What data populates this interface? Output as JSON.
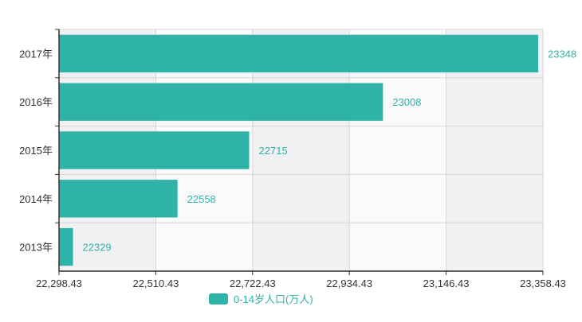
{
  "chart_data": {
    "type": "bar",
    "orientation": "horizontal",
    "categories": [
      "2013年",
      "2014年",
      "2015年",
      "2016年",
      "2017年"
    ],
    "series": [
      {
        "name": "0-14岁人口(万人)",
        "values": [
          22329,
          22558,
          22715,
          23008,
          23348
        ]
      }
    ],
    "data_labels": [
      "22329",
      "22558",
      "22715",
      "23008",
      "23348"
    ],
    "x_ticks": [
      22298.43,
      22510.43,
      22722.43,
      22934.43,
      23146.43,
      23358.43
    ],
    "x_tick_labels": [
      "22,298.43",
      "22,510.43",
      "22,722.43",
      "22,934.43",
      "23,146.43",
      "23,358.43"
    ],
    "xlim": [
      22298.43,
      23358.43
    ],
    "legend": "bottom",
    "grid": true,
    "colors": {
      "bar": "#2fb3a8",
      "label": "#2fb3a8",
      "axis": "#333333",
      "grid": "#d6d6d6",
      "band": "#f1f1f3"
    }
  }
}
